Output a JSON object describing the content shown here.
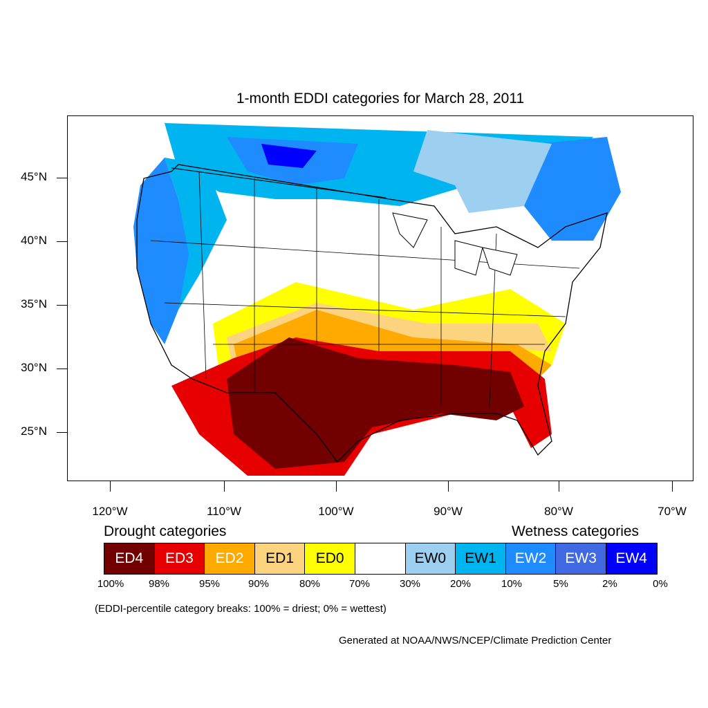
{
  "title": "1-month EDDI categories for March 28, 2011",
  "lat_labels": [
    "45°N",
    "40°N",
    "35°N",
    "30°N",
    "25°N"
  ],
  "lon_labels": [
    "120°W",
    "110°W",
    "100°W",
    "90°W",
    "80°W",
    "70°W"
  ],
  "legend": {
    "drought_heading": "Drought categories",
    "wetness_heading": "Wetness categories",
    "categories": [
      {
        "label": "ED4",
        "color": "#730000",
        "text_color": "#ffffff"
      },
      {
        "label": "ED3",
        "color": "#e60000",
        "text_color": "#ffffff"
      },
      {
        "label": "ED2",
        "color": "#ffaa00",
        "text_color": "#ffffff"
      },
      {
        "label": "ED1",
        "color": "#fcd37f",
        "text_color": "#000000"
      },
      {
        "label": "ED0",
        "color": "#ffff00",
        "text_color": "#000000"
      },
      {
        "label": "",
        "color": "#ffffff",
        "text_color": "#000000"
      },
      {
        "label": "EW0",
        "color": "#9dd0f0",
        "text_color": "#000000"
      },
      {
        "label": "EW1",
        "color": "#00b4f0",
        "text_color": "#000000"
      },
      {
        "label": "EW2",
        "color": "#1e8cff",
        "text_color": "#ffffff"
      },
      {
        "label": "EW3",
        "color": "#4169e1",
        "text_color": "#ffffff"
      },
      {
        "label": "EW4",
        "color": "#0000ff",
        "text_color": "#ffffff"
      }
    ],
    "breaks": [
      "100%",
      "98%",
      "95%",
      "90%",
      "80%",
      "70%",
      "30%",
      "20%",
      "10%",
      "5%",
      "2%",
      "0%"
    ]
  },
  "note": "(EDDI-percentile category breaks: 100% = driest; 0% = wettest)",
  "credit": "Generated at NOAA/NWS/NCEP/Climate Prediction Center"
}
